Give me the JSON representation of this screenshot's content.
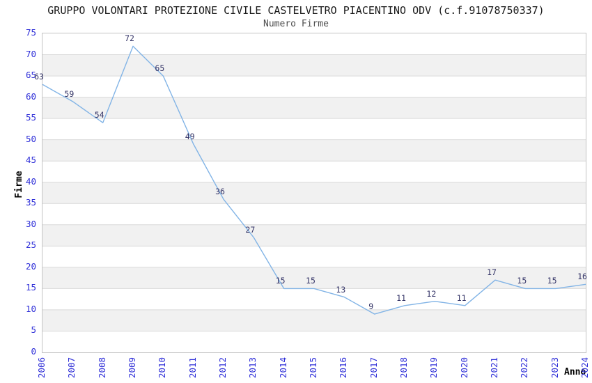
{
  "chart_data": {
    "type": "line",
    "title": "GRUPPO VOLONTARI PROTEZIONE CIVILE CASTELVETRO PIACENTINO ODV (c.f.91078750337)",
    "subtitle": "Numero Firme",
    "xlabel": "Anno",
    "ylabel": "Firme",
    "x": [
      "2006",
      "2007",
      "2008",
      "2009",
      "2010",
      "2011",
      "2012",
      "2013",
      "2014",
      "2015",
      "2016",
      "2017",
      "2018",
      "2019",
      "2020",
      "2021",
      "2022",
      "2023",
      "2024"
    ],
    "values": [
      63,
      59,
      54,
      72,
      65,
      49,
      36,
      27,
      15,
      15,
      13,
      9,
      11,
      12,
      11,
      17,
      15,
      15,
      16
    ],
    "ylim": [
      0,
      75
    ],
    "ytick_step": 5,
    "grid": true,
    "legend": null,
    "band_fill_alternating": true,
    "colors": {
      "line": "#82b4e6",
      "band_alt": "#f1f1f1",
      "band_main": "#ffffff",
      "grid": "#d9d9d9",
      "plot_border": "#c3c3c3",
      "tick_label": "#2e2ed8",
      "point_label": "#333366",
      "title": "#1a1a1a",
      "subtitle": "#4d4d4d",
      "axis_name": "#000000"
    }
  }
}
